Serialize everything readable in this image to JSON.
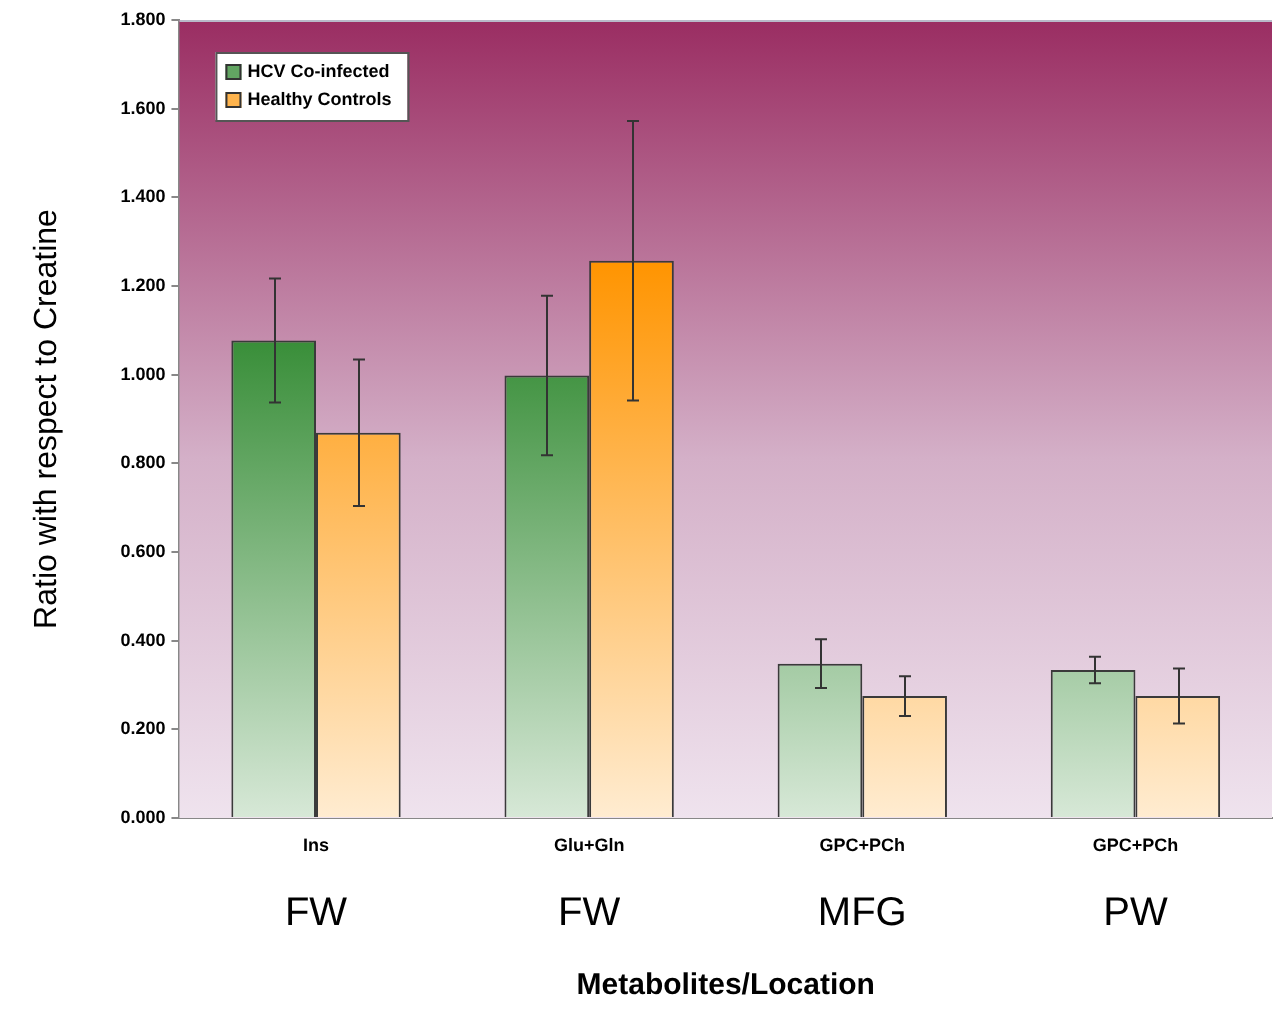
{
  "chart_data": {
    "type": "bar",
    "ylabel": "Ratio with respect to Creatine",
    "xlabel": "Metabolites/Location",
    "categories": [
      "Ins\nFW",
      "Glu+Gln\nFW",
      "GPC+PCh\nMFG",
      "GPC+PCh\nPW"
    ],
    "series": [
      {
        "name": "HCV Co-infected",
        "color": "#1e7f1e",
        "values": [
          1.077,
          0.998,
          0.348,
          0.334
        ],
        "errors": [
          0.14,
          0.18,
          0.055,
          0.03
        ]
      },
      {
        "name": "Healthy Controls",
        "color": "#ff9400",
        "values": [
          0.869,
          1.257,
          0.275,
          0.275
        ],
        "errors": [
          0.165,
          0.315,
          0.045,
          0.062
        ]
      }
    ],
    "ylim": [
      0,
      1.8
    ],
    "yticks": [
      {
        "value": 0,
        "label": "0.000"
      },
      {
        "value": 0.2,
        "label": "0.200"
      },
      {
        "value": 0.4,
        "label": "0.400"
      },
      {
        "value": 0.6,
        "label": "0.600"
      },
      {
        "value": 0.8,
        "label": "0.800"
      },
      {
        "value": 1.0,
        "label": "1.000"
      },
      {
        "value": 1.2,
        "label": "1.200"
      },
      {
        "value": 1.4,
        "label": "1.400"
      },
      {
        "value": 1.6,
        "label": "1.600"
      },
      {
        "value": 1.8,
        "label": "1.800"
      }
    ],
    "grid": false,
    "legend": "top left"
  }
}
